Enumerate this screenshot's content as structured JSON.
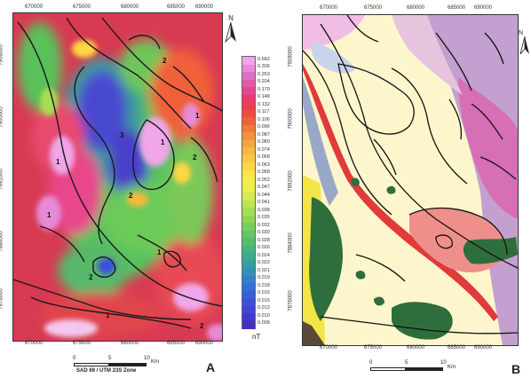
{
  "panel_a": {
    "letter": "A",
    "x_ticks": [
      "670000",
      "675000",
      "680000",
      "685000",
      "690000"
    ],
    "y_ticks": [
      "7908000",
      "7900000",
      "7892000",
      "7884000",
      "7876000"
    ],
    "north_label": "N",
    "zone_labels": [
      "2",
      "3",
      "1",
      "2",
      "2",
      "1",
      "2",
      "1",
      "2",
      "1",
      "1",
      "1"
    ],
    "scale": {
      "labels": [
        "0",
        "5",
        "10"
      ],
      "unit": "Km",
      "datum": "SAD 69 / UTM 23S Zone"
    }
  },
  "colorbar": {
    "unit": "nT",
    "labels": [
      "0.682",
      "0.306",
      "0.263",
      "0.204",
      "0.170",
      "0.148",
      "0.132",
      "0.117",
      "0.106",
      "0.096",
      "0.087",
      "0.080",
      "0.074",
      "0.068",
      "0.063",
      "0.058",
      "0.052",
      "0.047",
      "0.044",
      "0.041",
      "0.038",
      "0.035",
      "0.032",
      "0.030",
      "0.028",
      "0.026",
      "0.024",
      "0.022",
      "0.021",
      "0.019",
      "0.018",
      "0.016",
      "0.015",
      "0.013",
      "0.010",
      "0.008"
    ],
    "colors": [
      "#f0a6e8",
      "#e88ad8",
      "#e070c6",
      "#e05aa8",
      "#e8468c",
      "#ec3a6e",
      "#f03a52",
      "#f04a3e",
      "#f0603a",
      "#f07a3a",
      "#f4923c",
      "#f6a63c",
      "#f8b83e",
      "#fac840",
      "#fcd842",
      "#fce646",
      "#f6ee48",
      "#e6f04a",
      "#d2ec4c",
      "#bce64e",
      "#a6de52",
      "#8ed656",
      "#78ce5c",
      "#64c664",
      "#52be70",
      "#44b47e",
      "#3aaa90",
      "#349ea4",
      "#3290b8",
      "#3280c8",
      "#3470d4",
      "#3660da",
      "#3a50dc",
      "#3e44d8",
      "#4238ce",
      "#4430c0"
    ]
  },
  "panel_b": {
    "letter": "B",
    "x_ticks": [
      "670000",
      "675000",
      "680000",
      "685000",
      "690000"
    ],
    "y_ticks": [
      "7908000",
      "7900000",
      "7892000",
      "7884000",
      "7876000"
    ],
    "north_label": "N",
    "scale": {
      "labels": [
        "0",
        "5",
        "10"
      ],
      "unit": "Km"
    }
  }
}
